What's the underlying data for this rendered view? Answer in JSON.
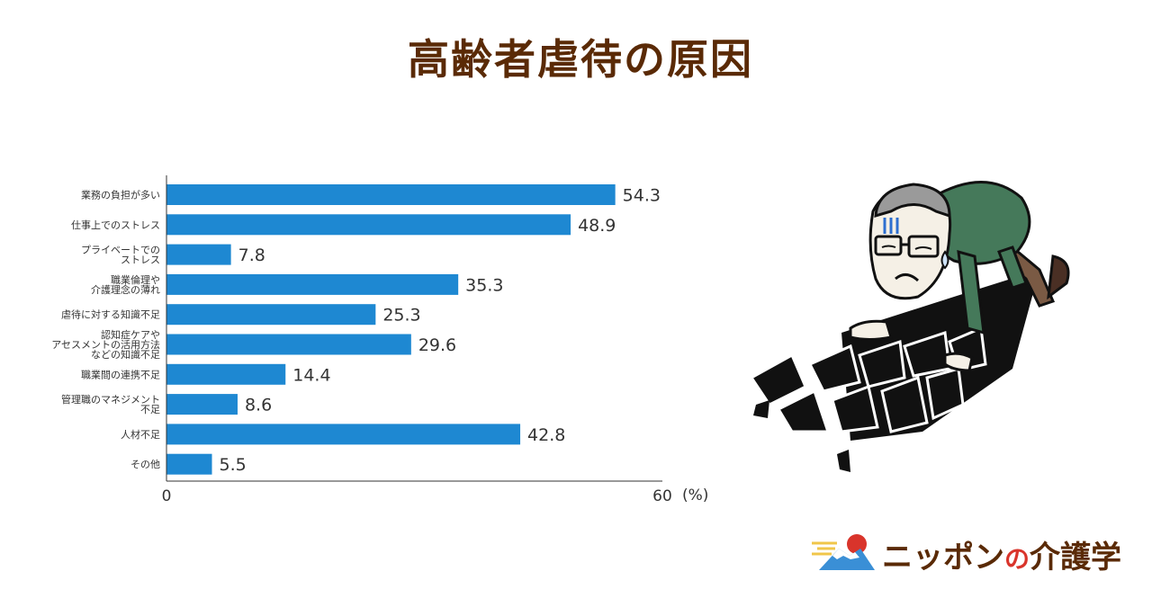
{
  "title": "高齢者虐待の原因",
  "chart_data": {
    "type": "bar",
    "orientation": "horizontal",
    "categories": [
      [
        "業務の負担が多い"
      ],
      [
        "仕事上でのストレス"
      ],
      [
        "プライベートでの",
        "ストレス"
      ],
      [
        "職業倫理や",
        "介護理念の薄れ"
      ],
      [
        "虐待に対する知識不足"
      ],
      [
        "認知症ケアや",
        "アセスメントの活用方法",
        "などの知識不足"
      ],
      [
        "職業間の連携不足"
      ],
      [
        "管理職のマネジメント",
        "不足"
      ],
      [
        "人材不足"
      ],
      [
        "その他"
      ]
    ],
    "values": [
      54.3,
      48.9,
      7.8,
      35.3,
      25.3,
      29.6,
      14.4,
      8.6,
      42.8,
      5.5
    ],
    "value_labels": [
      "54.3",
      "48.9",
      "7.8",
      "35.3",
      "25.3",
      "29.6",
      "14.4",
      "8.6",
      "42.8",
      "5.5"
    ],
    "xlim": [
      0,
      60
    ],
    "x_ticks": [
      "0",
      "60"
    ],
    "x_unit": "(%)",
    "bar_color": "#1e88d2",
    "grid": false
  },
  "logo": {
    "text_main": "ニッポン",
    "text_no": "の",
    "text_end": "介護学"
  },
  "colors": {
    "title": "#5a2a06",
    "bar": "#1e88d2",
    "logo_text": "#5a2a06",
    "logo_accent": "#d9342b"
  }
}
